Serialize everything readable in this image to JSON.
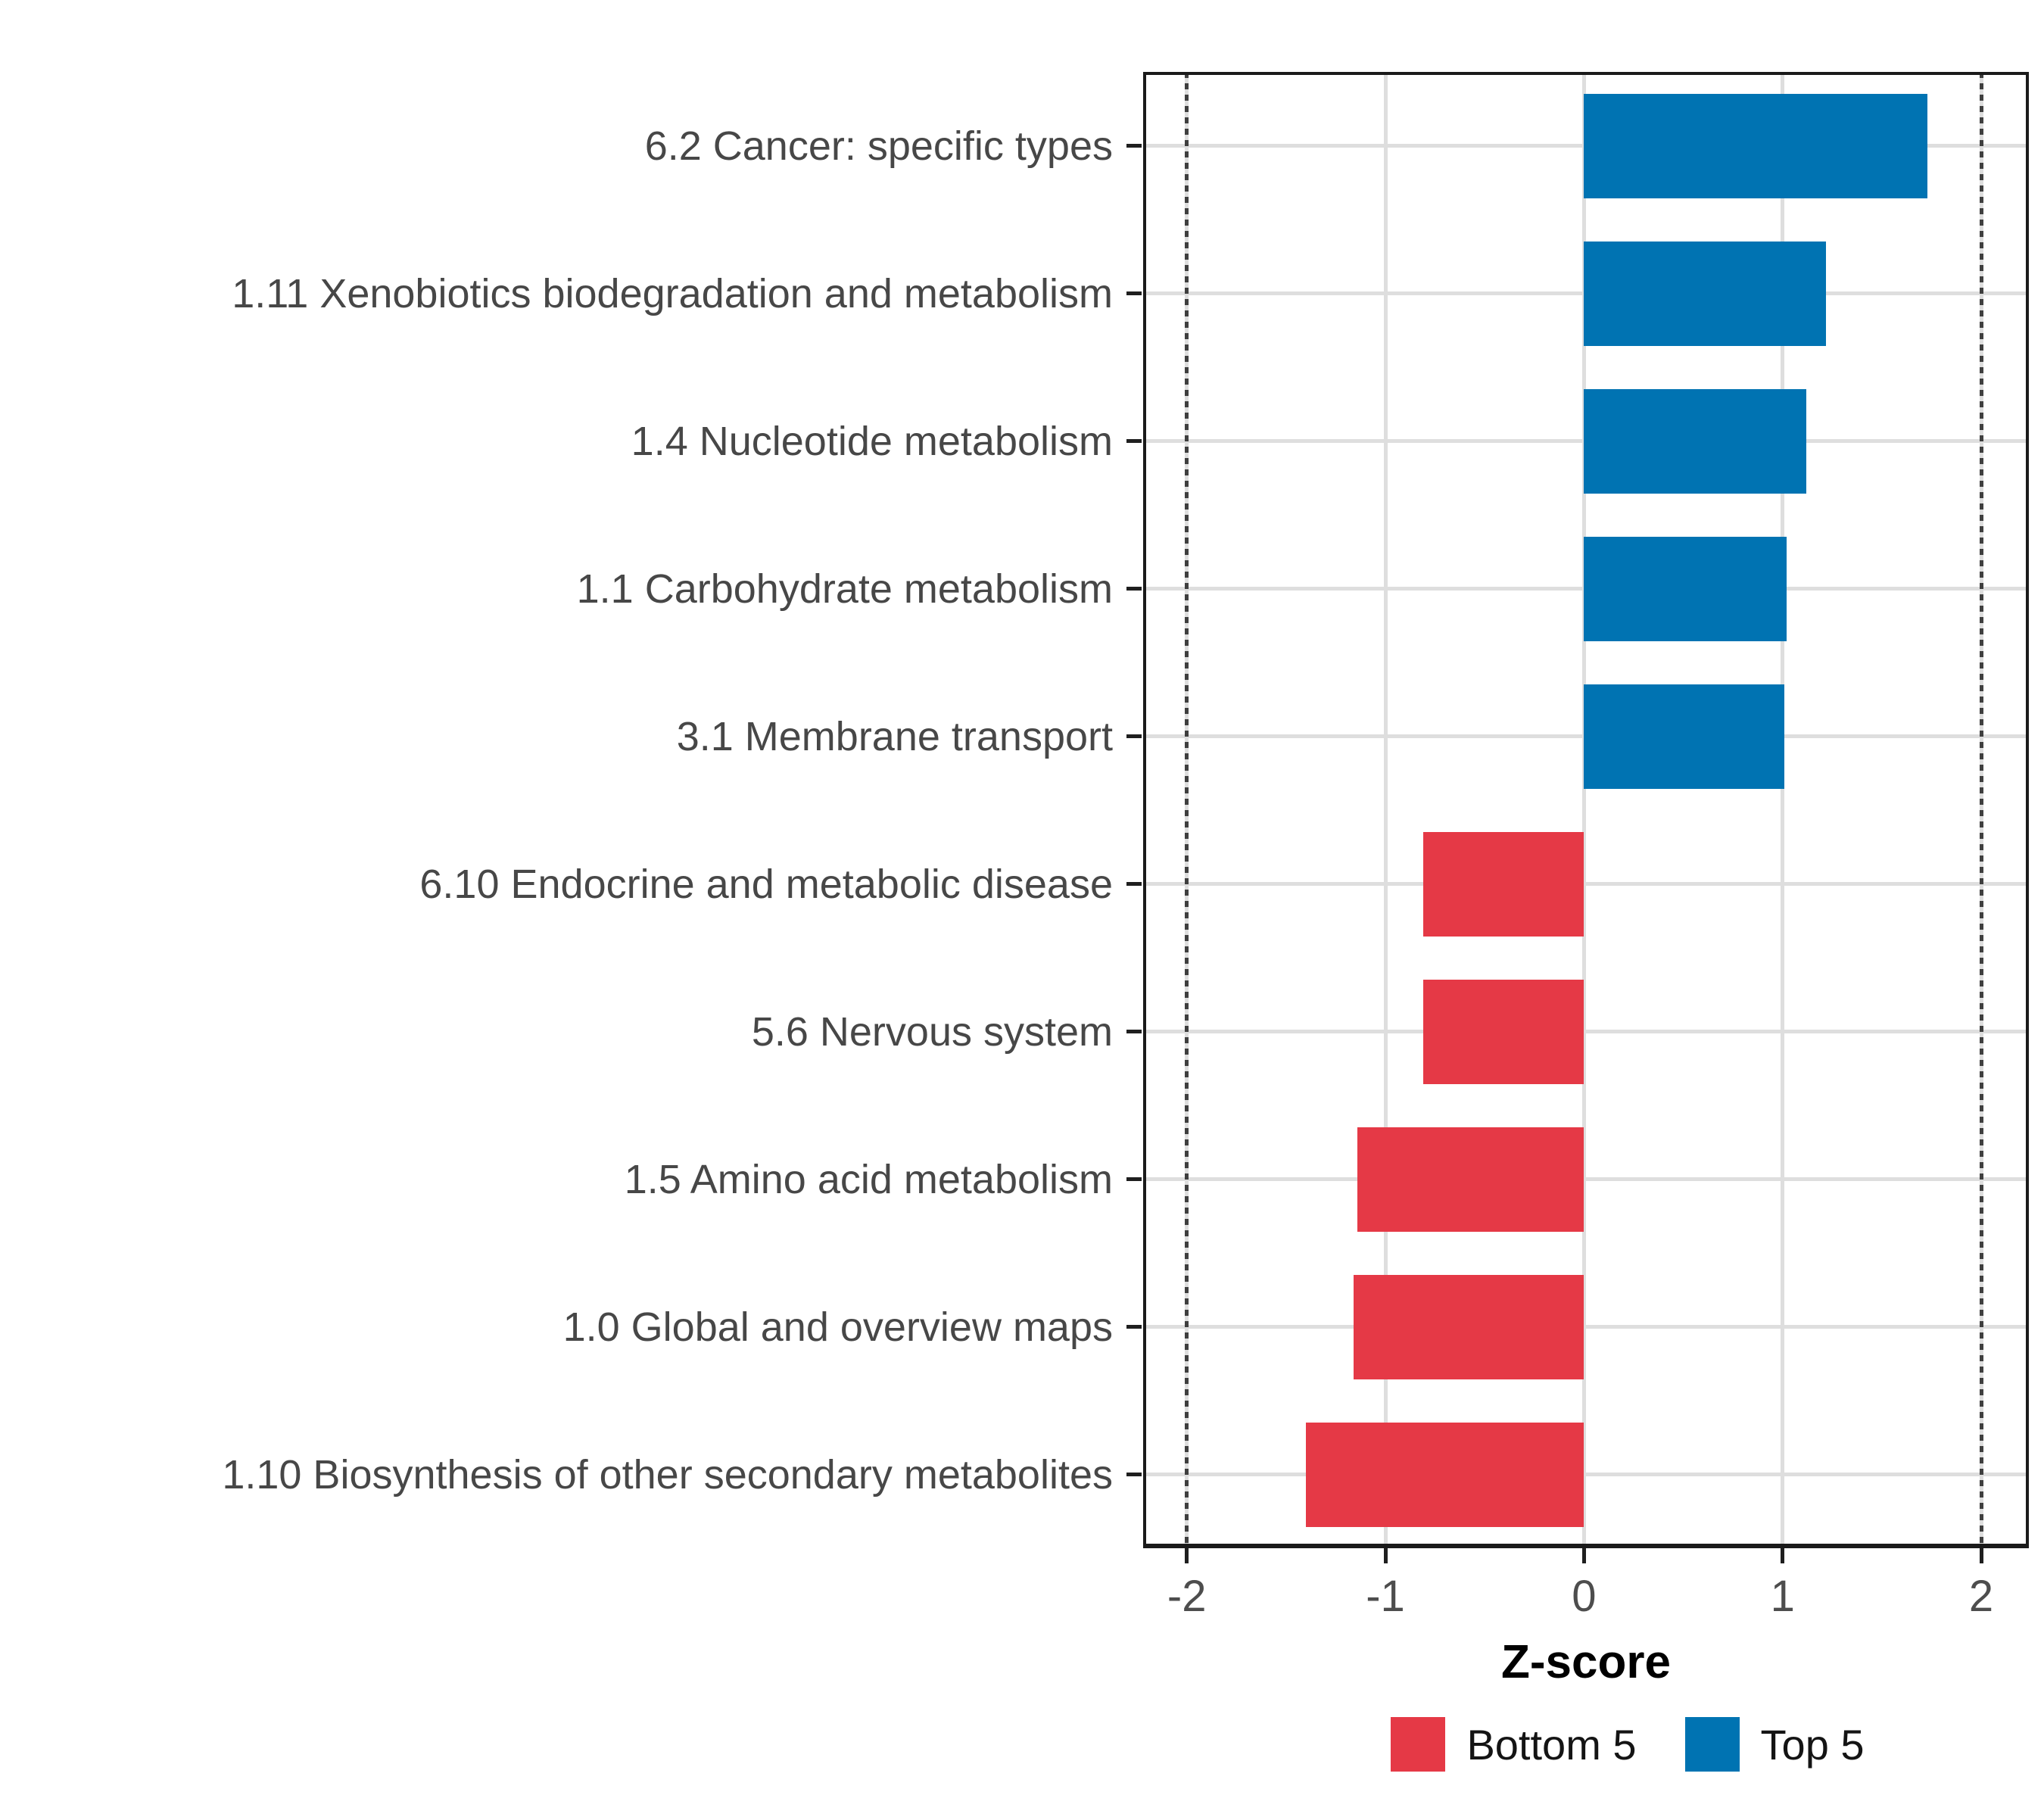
{
  "chart_data": {
    "type": "bar",
    "orientation": "horizontal",
    "title": "",
    "xlabel": "Z-score",
    "ylabel": "",
    "categories": [
      "6.2 Cancer: specific types",
      "1.11 Xenobiotics biodegradation and metabolism",
      "1.4 Nucleotide metabolism",
      "1.1 Carbohydrate metabolism",
      "3.1 Membrane transport",
      "6.10 Endocrine and metabolic disease",
      "5.6 Nervous system",
      "1.5 Amino acid metabolism",
      "1.0 Global and overview maps",
      "1.10 Biosynthesis of other secondary metabolites"
    ],
    "values": [
      1.73,
      1.22,
      1.12,
      1.02,
      1.01,
      -0.81,
      -0.81,
      -1.14,
      -1.16,
      -1.4
    ],
    "groups": [
      "Top 5",
      "Top 5",
      "Top 5",
      "Top 5",
      "Top 5",
      "Bottom 5",
      "Bottom 5",
      "Bottom 5",
      "Bottom 5",
      "Bottom 5"
    ],
    "colors": {
      "Top 5": "#0073B2",
      "Bottom 5": "#E53946"
    },
    "x_ticks": [
      -2,
      -1,
      0,
      1,
      2
    ],
    "x_tick_labels": [
      "-2",
      "-1",
      "0",
      "1",
      "2"
    ],
    "xlim": [
      -2.22,
      2.24
    ],
    "reference_lines": [
      -2,
      2
    ],
    "reference_line_style": "dotted",
    "grid": true,
    "legend_position": "bottom",
    "legend": [
      {
        "label": "Bottom 5",
        "color": "#E53946"
      },
      {
        "label": "Top 5",
        "color": "#0073B2"
      }
    ]
  }
}
